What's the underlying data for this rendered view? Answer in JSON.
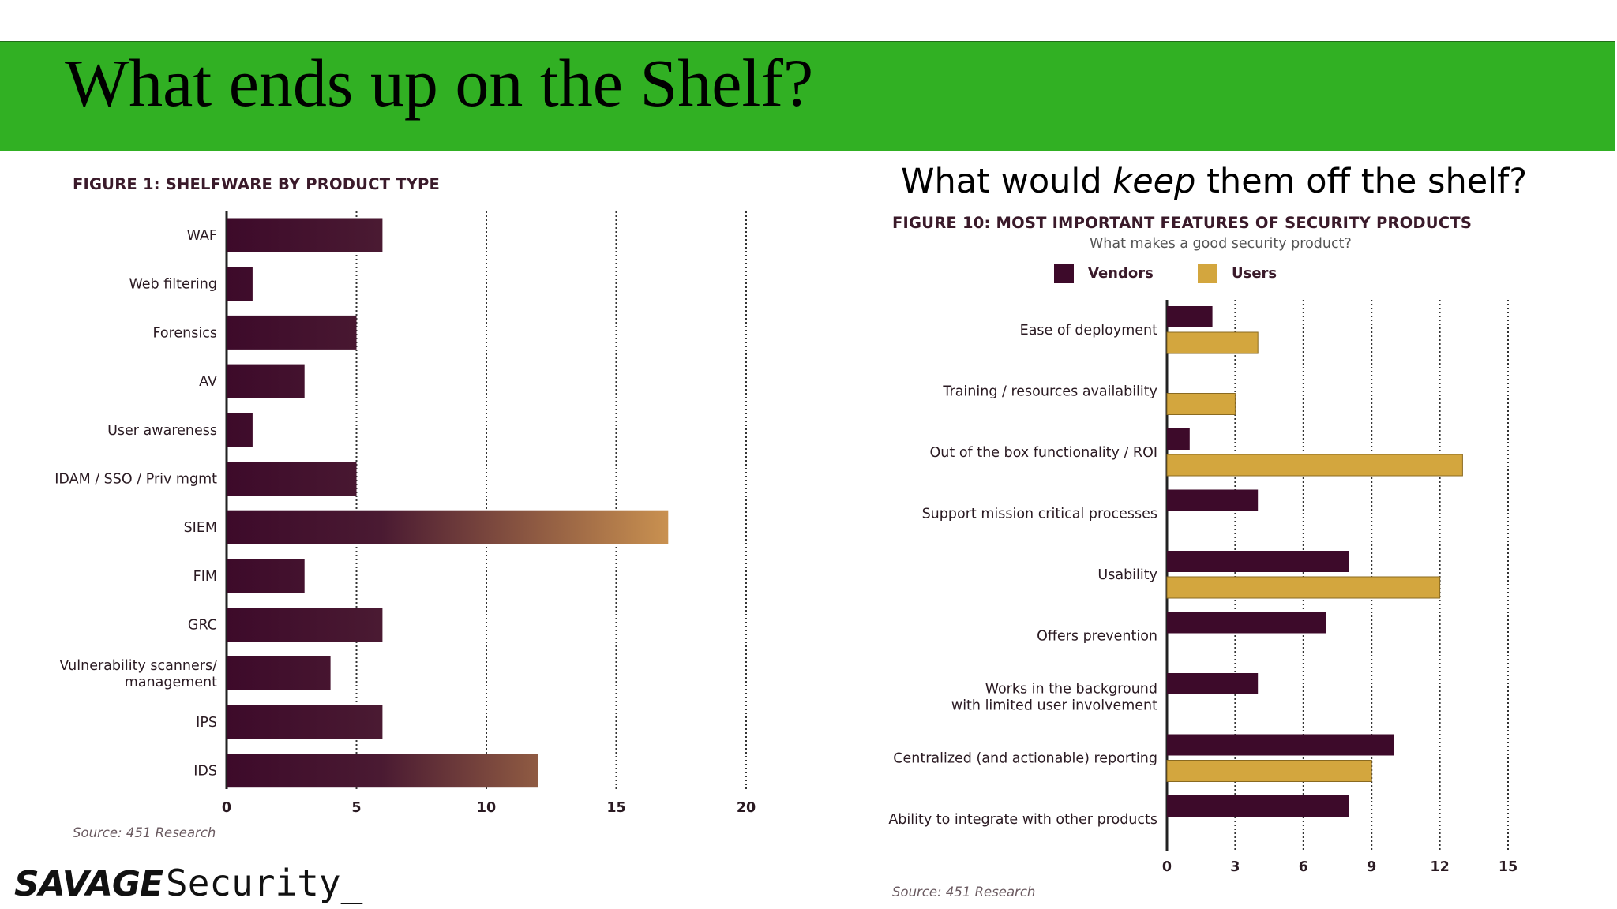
{
  "slide_title": "What ends up on the Shelf?",
  "right_heading": {
    "before": "What would ",
    "em": "keep",
    "after": " them off the shelf?"
  },
  "logo": {
    "bold": "SAVAGE",
    "mono": "Security_"
  },
  "colors": {
    "title_bar": "#31b023",
    "vendors": "#3d0a2a",
    "users": "#d3a63e",
    "bar_dark": "#3d0a2a",
    "bar_light": "#c99150"
  },
  "chart_data": [
    {
      "type": "bar",
      "orientation": "horizontal",
      "title": "FIGURE 1: SHELFWARE BY PRODUCT TYPE",
      "categories": [
        "WAF",
        "Web filtering",
        "Forensics",
        "AV",
        "User awareness",
        "IDAM / SSO / Priv mgmt",
        "SIEM",
        "FIM",
        "GRC",
        "Vulnerability scanners/\nmanagement",
        "IPS",
        "IDS"
      ],
      "values": [
        6,
        1,
        5,
        3,
        1,
        5,
        17,
        3,
        6,
        4,
        6,
        12
      ],
      "xlim": [
        0,
        20
      ],
      "xticks": [
        0,
        5,
        10,
        15,
        20
      ],
      "grid": "vertical dotted",
      "source": "Source: 451 Research"
    },
    {
      "type": "bar",
      "orientation": "horizontal",
      "title": "FIGURE 10: MOST IMPORTANT FEATURES OF SECURITY PRODUCTS",
      "subtitle": "What makes a good security product?",
      "categories": [
        "Ease of deployment",
        "Training / resources availability",
        "Out of the box functionality / ROI",
        "Support mission critical processes",
        "Usability",
        "Offers prevention",
        "Works in the background\nwith limited user involvement",
        "Centralized (and actionable) reporting",
        "Ability to integrate with other products"
      ],
      "series": [
        {
          "name": "Vendors",
          "values": [
            2,
            0,
            1,
            4,
            8,
            7,
            4,
            10,
            8
          ]
        },
        {
          "name": "Users",
          "values": [
            4,
            3,
            13,
            0,
            12,
            0,
            0,
            9,
            0
          ]
        }
      ],
      "xlim": [
        0,
        15
      ],
      "xticks": [
        0,
        3,
        6,
        9,
        12,
        15
      ],
      "legend": "top",
      "grid": "vertical dotted",
      "source": "Source: 451 Research"
    }
  ]
}
